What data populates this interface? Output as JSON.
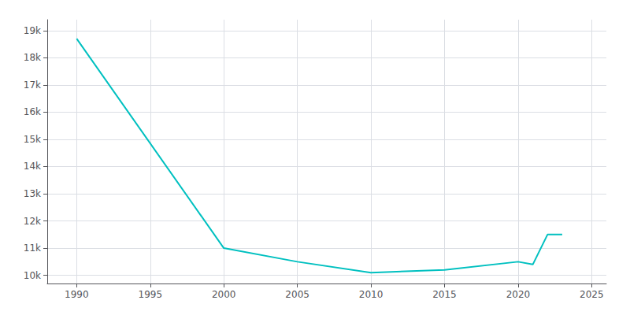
{
  "chart_data": {
    "type": "line",
    "x": [
      1990,
      2000,
      2005,
      2010,
      2015,
      2020,
      2021,
      2022,
      2023
    ],
    "values": [
      18700,
      11000,
      10500,
      10100,
      10200,
      10500,
      10400,
      11500,
      11500
    ],
    "color": "#00C0C0",
    "xlim": [
      1988,
      2026
    ],
    "xticks": [
      1990,
      1995,
      2000,
      2005,
      2010,
      2015,
      2020,
      2025
    ],
    "ylim": [
      9700,
      19400
    ],
    "yticks": [
      {
        "value": 10000,
        "label": "10k"
      },
      {
        "value": 11000,
        "label": "11k"
      },
      {
        "value": 12000,
        "label": "12k"
      },
      {
        "value": 13000,
        "label": "13k"
      },
      {
        "value": 14000,
        "label": "14k"
      },
      {
        "value": 15000,
        "label": "15k"
      },
      {
        "value": 16000,
        "label": "16k"
      },
      {
        "value": 17000,
        "label": "17k"
      },
      {
        "value": 18000,
        "label": "18k"
      },
      {
        "value": 19000,
        "label": "19k"
      }
    ],
    "grid": true
  }
}
